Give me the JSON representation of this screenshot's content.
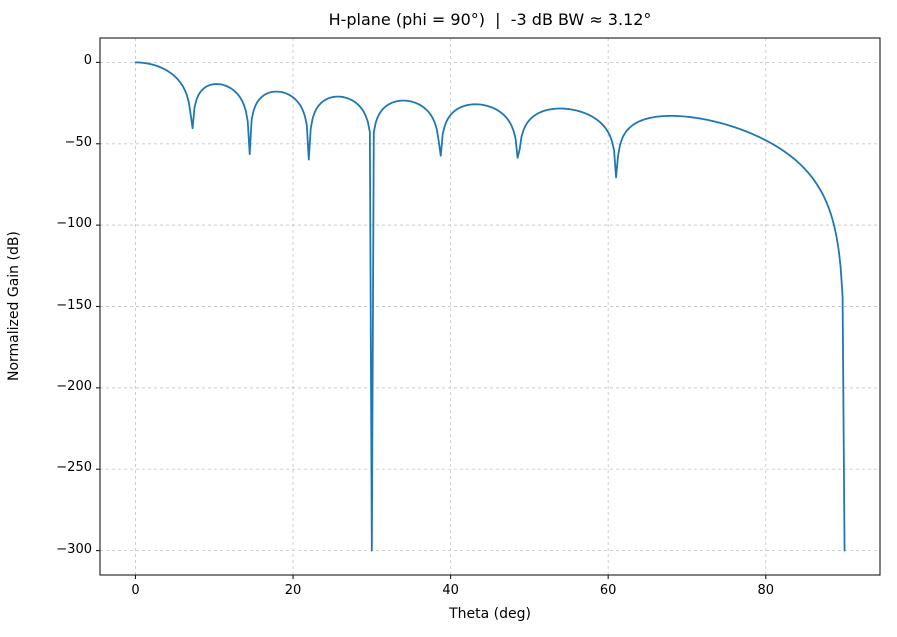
{
  "chart_data": {
    "type": "line",
    "title": "H-plane (phi = 90°)  |  -3 dB BW ≈ 3.12°",
    "xlabel": "Theta (deg)",
    "ylabel": "Normalized Gain (dB)",
    "xlim": [
      -4.5,
      94.5
    ],
    "ylim": [
      -315,
      15
    ],
    "xticks": [
      0,
      20,
      40,
      60,
      80
    ],
    "xtick_labels": [
      "0",
      "20",
      "40",
      "60",
      "80"
    ],
    "yticks": [
      0,
      -50,
      -100,
      -150,
      -200,
      -250,
      -300
    ],
    "ytick_labels": [
      "0",
      "−50",
      "−100",
      "−150",
      "−200",
      "−250",
      "−300"
    ],
    "grid": true,
    "grid_style": "dashed",
    "legend": "none",
    "line_color": "#1f77b4",
    "grid_color": "#c9c9c9",
    "axis_color": "#1a1a1a",
    "background_color": "#ffffff",
    "curve_model": {
      "kind": "uniform-linear-array-factor",
      "n_elements": 16,
      "spacing_wavelengths": 0.5,
      "element_factor": "cos(theta)",
      "floor_db": -300,
      "theta_start_deg": 0,
      "theta_end_deg": 90,
      "step_deg": 0.25
    },
    "key_points": [
      [
        0,
        0
      ],
      [
        1.6,
        -0.7
      ],
      [
        3.2,
        -3.0
      ],
      [
        7.2,
        -41
      ],
      [
        10.8,
        -13.3
      ],
      [
        14.5,
        -56
      ],
      [
        18.2,
        -17.7
      ],
      [
        22.0,
        -59
      ],
      [
        26.1,
        -20.9
      ],
      [
        30.0,
        -300
      ],
      [
        34.4,
        -23.4
      ],
      [
        38.7,
        -58
      ],
      [
        43.7,
        -25.5
      ],
      [
        48.6,
        -62
      ],
      [
        54.3,
        -28.4
      ],
      [
        61.0,
        -71
      ],
      [
        68.0,
        -32.8
      ],
      [
        75.0,
        -38
      ],
      [
        80.0,
        -48
      ],
      [
        85.0,
        -65
      ],
      [
        88.0,
        -93
      ],
      [
        89.5,
        -125
      ],
      [
        90.0,
        -300
      ]
    ]
  }
}
